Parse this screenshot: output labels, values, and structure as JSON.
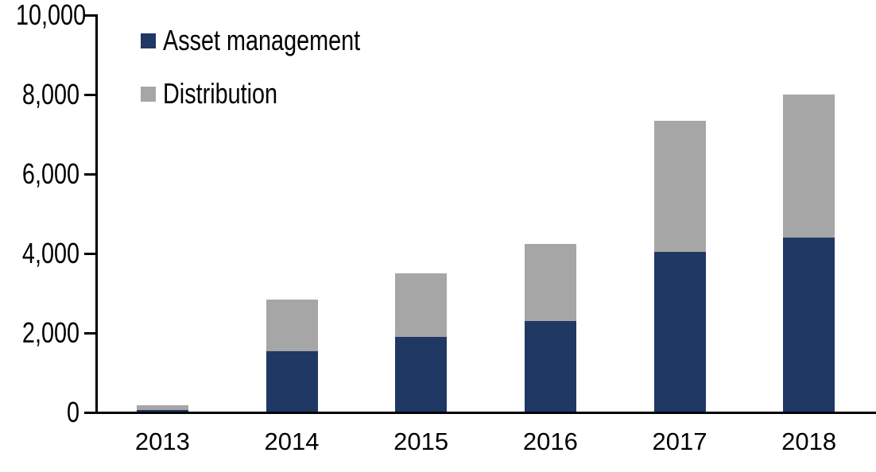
{
  "chart_data": {
    "type": "bar",
    "stacked": true,
    "title": "",
    "xlabel": "",
    "ylabel": "",
    "categories": [
      "2013",
      "2014",
      "2015",
      "2016",
      "2017",
      "2018"
    ],
    "series": [
      {
        "name": "Asset management",
        "color": "#1F3864",
        "values": [
          60,
          1550,
          1900,
          2300,
          4050,
          4400
        ]
      },
      {
        "name": "Distribution",
        "color": "#A6A6A6",
        "values": [
          130,
          1300,
          1600,
          1950,
          3300,
          3600
        ]
      }
    ],
    "totals": [
      190,
      2850,
      3500,
      4250,
      7350,
      8000
    ],
    "ylim": [
      0,
      10000
    ],
    "ytick_step": 2000,
    "ytick_labels": [
      "0",
      "2,000",
      "4,000",
      "6,000",
      "8,000",
      "10,000"
    ],
    "grid": false,
    "legend_position": "top-left-inside",
    "axis_color": "#000000",
    "text_color": "#000000",
    "background_color": "#FFFFFF"
  }
}
